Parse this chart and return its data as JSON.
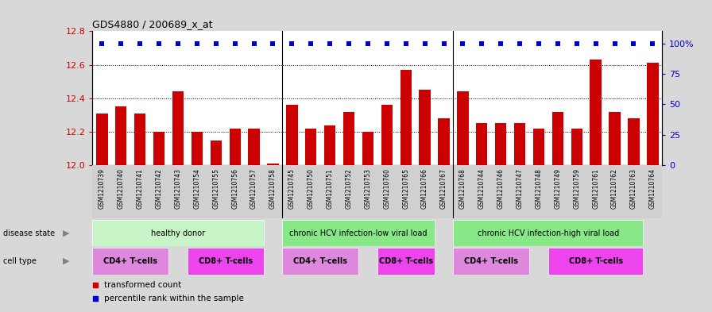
{
  "title": "GDS4880 / 200689_x_at",
  "samples": [
    "GSM1210739",
    "GSM1210740",
    "GSM1210741",
    "GSM1210742",
    "GSM1210743",
    "GSM1210754",
    "GSM1210755",
    "GSM1210756",
    "GSM1210757",
    "GSM1210758",
    "GSM1210745",
    "GSM1210750",
    "GSM1210751",
    "GSM1210752",
    "GSM1210753",
    "GSM1210760",
    "GSM1210765",
    "GSM1210766",
    "GSM1210767",
    "GSM1210768",
    "GSM1210744",
    "GSM1210746",
    "GSM1210747",
    "GSM1210748",
    "GSM1210749",
    "GSM1210759",
    "GSM1210761",
    "GSM1210762",
    "GSM1210763",
    "GSM1210764"
  ],
  "values": [
    12.31,
    12.35,
    12.31,
    12.2,
    12.44,
    12.2,
    12.15,
    12.22,
    12.22,
    12.01,
    12.36,
    12.22,
    12.24,
    12.32,
    12.2,
    12.36,
    12.57,
    12.45,
    12.28,
    12.44,
    12.25,
    12.25,
    12.25,
    12.22,
    12.32,
    12.22,
    12.63,
    12.32,
    12.28,
    12.61
  ],
  "bar_color": "#cc0000",
  "percentile_color": "#0000cc",
  "ylim_left": [
    12.0,
    12.8
  ],
  "ylim_right": [
    0,
    110
  ],
  "yticks_left": [
    12.0,
    12.2,
    12.4,
    12.6,
    12.8
  ],
  "yticks_right": [
    0,
    25,
    50,
    75,
    100
  ],
  "ytick_right_labels": [
    "0",
    "25",
    "50",
    "75",
    "100%"
  ],
  "gridlines": [
    12.2,
    12.4,
    12.6
  ],
  "group_separators": [
    9.5,
    18.5
  ],
  "disease_groups": [
    {
      "label": "healthy donor",
      "start": 0,
      "end": 9,
      "color": "#c8f5c8"
    },
    {
      "label": "chronic HCV infection-low viral load",
      "start": 10,
      "end": 18,
      "color": "#88e888"
    },
    {
      "label": "chronic HCV infection-high viral load",
      "start": 19,
      "end": 29,
      "color": "#88e888"
    }
  ],
  "cell_groups": [
    {
      "label": "CD4+ T-cells",
      "start": 0,
      "end": 4,
      "color": "#dd88dd"
    },
    {
      "label": "CD8+ T-cells",
      "start": 5,
      "end": 9,
      "color": "#ee44ee"
    },
    {
      "label": "CD4+ T-cells",
      "start": 10,
      "end": 14,
      "color": "#dd88dd"
    },
    {
      "label": "CD8+ T-cells",
      "start": 15,
      "end": 18,
      "color": "#ee44ee"
    },
    {
      "label": "CD4+ T-cells",
      "start": 19,
      "end": 23,
      "color": "#dd88dd"
    },
    {
      "label": "CD8+ T-cells",
      "start": 24,
      "end": 29,
      "color": "#ee44ee"
    }
  ],
  "disease_state_label": "disease state",
  "cell_type_label": "cell type",
  "bg_color": "#d8d8d8",
  "plot_bg": "#ffffff",
  "xtick_bg": "#d0d0d0"
}
